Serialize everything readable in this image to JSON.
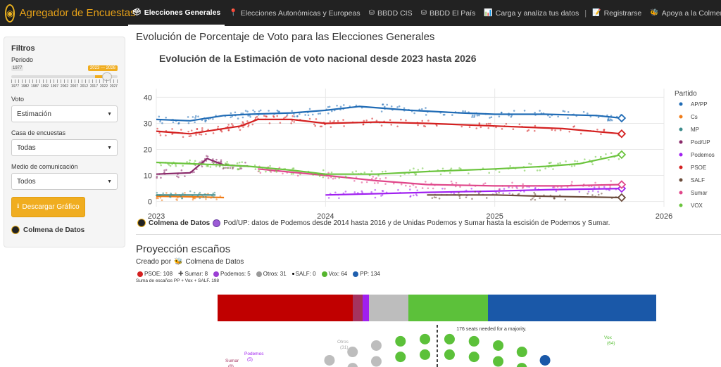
{
  "navbar": {
    "brand": "Agregador de Encuestas",
    "items": [
      {
        "label": "Elecciones Generales",
        "icon": "ballot-box-icon",
        "active": true
      },
      {
        "label": "Elecciones Autonómicas y Europeas",
        "icon": "pin-icon"
      },
      {
        "label": "BBDD CIS",
        "icon": "database-icon"
      },
      {
        "label": "BBDD El País",
        "icon": "database-icon"
      },
      {
        "label": "Carga y analiza tus datos",
        "icon": "chart-icon"
      },
      {
        "label": "Registrarse",
        "icon": "signup-icon"
      },
      {
        "label": "Apoya a la Colmena!",
        "icon": "heart-icon"
      }
    ]
  },
  "sidebar": {
    "title": "Filtros",
    "periodo_label": "Periodo",
    "slider_min": "1977",
    "slider_selected": "2023 — 2026",
    "slider_ticks": [
      "1977",
      "1982",
      "1987",
      "1992",
      "1997",
      "2002",
      "2007",
      "2012",
      "2017",
      "2022",
      "2027"
    ],
    "voto_label": "Voto",
    "voto_value": "Estimación",
    "casa_label": "Casa de encuestas",
    "casa_value": "Todas",
    "medio_label": "Medio de comunicación",
    "medio_value": "Todos",
    "download_label": "Descargar Gráfico",
    "credit": "Colmena de Datos"
  },
  "main": {
    "section_title": "Evolución de Porcentaje de Voto para las Elecciones Generales",
    "caption_brand": "Colmena de Datos",
    "caption_text": "Pod/UP: datos de Podemos desde 2014 hasta 2016 y de Unidas Podemos y Sumar hasta la escisión de Podemos y Sumar.",
    "proj_title": "Proyección escaños",
    "created_by": "Creado por",
    "created_brand": "Colmena de Datos",
    "sum_note": "Suma de escaños PP + Vox + SALF.  198",
    "majority_note": "176 seats needed for a majority."
  },
  "seat_legend": [
    {
      "label": "PSOE: 108",
      "color": "#d42020"
    },
    {
      "label": "Sumar: 8",
      "color": "#555555",
      "cross": true
    },
    {
      "label": "Podemos: 5",
      "color": "#9b3fd4"
    },
    {
      "label": "Otros: 31",
      "color": "#999999"
    },
    {
      "label": "SALF: 0",
      "color": "#000000",
      "small": true
    },
    {
      "label": "Vox: 64",
      "color": "#55b52e"
    },
    {
      "label": "PP: 134",
      "color": "#1f5fae"
    }
  ],
  "seat_bar": [
    {
      "party": "PSOE",
      "seats": 108,
      "color": "#c00000"
    },
    {
      "party": "Sumar",
      "seats": 8,
      "color": "#a4335f"
    },
    {
      "party": "Podemos",
      "seats": 5,
      "color": "#a020f0"
    },
    {
      "party": "Otros",
      "seats": 31,
      "color": "#bdbdbd"
    },
    {
      "party": "Vox",
      "seats": 64,
      "color": "#5cc13a"
    },
    {
      "party": "PP",
      "seats": 134,
      "color": "#1a58a8"
    }
  ],
  "hemi_labels": [
    {
      "text": "Podemos",
      "sub": "(5)",
      "color": "#a020f0"
    },
    {
      "text": "Sumar",
      "sub": "(8)",
      "color": "#a4335f"
    },
    {
      "text": "Otros",
      "sub": "(31)",
      "color": "#aaaaaa"
    },
    {
      "text": "Vox",
      "sub": "(64)",
      "color": "#5cc13a"
    }
  ],
  "chart_data": {
    "type": "line",
    "title": "Evolución de la Estimación de voto nacional desde 2023 hasta 2026",
    "xlabel": "",
    "ylabel": "",
    "x_ticks": [
      "2023",
      "2024",
      "2025",
      "2026"
    ],
    "xlim": [
      2023.0,
      2026.0
    ],
    "ylim": [
      -2,
      42
    ],
    "y_ticks": [
      0,
      10,
      20,
      30,
      40
    ],
    "legend_title": "Partido",
    "legend_position": "right",
    "series": [
      {
        "name": "AP/PP",
        "color": "#1f6bb5",
        "x": [
          2023.0,
          2023.2,
          2023.4,
          2023.55,
          2023.8,
          2024.0,
          2024.2,
          2024.5,
          2024.8,
          2025.0,
          2025.3,
          2025.6,
          2025.75
        ],
        "y": [
          31.5,
          31,
          33,
          33.5,
          34,
          35,
          36.5,
          35,
          34,
          33.5,
          33.5,
          33,
          32
        ]
      },
      {
        "name": "Cs",
        "color": "#f07c18",
        "x": [
          2023.0,
          2023.2,
          2023.4
        ],
        "y": [
          2,
          1.8,
          1.5
        ]
      },
      {
        "name": "MP",
        "color": "#3d8c8c",
        "x": [
          2023.0,
          2023.2,
          2023.35
        ],
        "y": [
          2.5,
          2.5,
          2.5
        ]
      },
      {
        "name": "Pod/UP",
        "color": "#8a2a6a",
        "x": [
          2023.0,
          2023.2,
          2023.3,
          2023.4,
          2023.55
        ],
        "y": [
          10.5,
          11,
          16.5,
          14,
          13.5
        ]
      },
      {
        "name": "Podemos",
        "color": "#a020f0",
        "x": [
          2024.0,
          2024.3,
          2024.6,
          2025.0,
          2025.3,
          2025.75
        ],
        "y": [
          2.5,
          3,
          3.5,
          4,
          4.5,
          5
        ]
      },
      {
        "name": "PSOE",
        "color": "#d42020",
        "x": [
          2023.0,
          2023.2,
          2023.35,
          2023.5,
          2023.6,
          2023.8,
          2024.0,
          2024.3,
          2024.6,
          2025.0,
          2025.4,
          2025.75
        ],
        "y": [
          27,
          26,
          27.5,
          29,
          31.5,
          31.5,
          30,
          30.5,
          30,
          29,
          28,
          26
        ]
      },
      {
        "name": "SALF",
        "color": "#6b4c3b",
        "x": [
          2024.6,
          2025.0,
          2025.3,
          2025.75
        ],
        "y": [
          2.5,
          2.5,
          2,
          1.5
        ]
      },
      {
        "name": "Sumar",
        "color": "#e0468a",
        "x": [
          2023.6,
          2024.0,
          2024.3,
          2024.6,
          2025.0,
          2025.4,
          2025.75
        ],
        "y": [
          12.5,
          10,
          8,
          6.5,
          6,
          6,
          6.5
        ]
      },
      {
        "name": "VOX",
        "color": "#6bc43d",
        "x": [
          2023.0,
          2023.2,
          2023.4,
          2023.55,
          2023.8,
          2024.0,
          2024.3,
          2024.6,
          2025.0,
          2025.3,
          2025.5,
          2025.75
        ],
        "y": [
          15,
          14.5,
          14,
          13.5,
          12,
          10.5,
          10.5,
          11.5,
          12.5,
          13.5,
          14.5,
          18
        ]
      }
    ]
  }
}
